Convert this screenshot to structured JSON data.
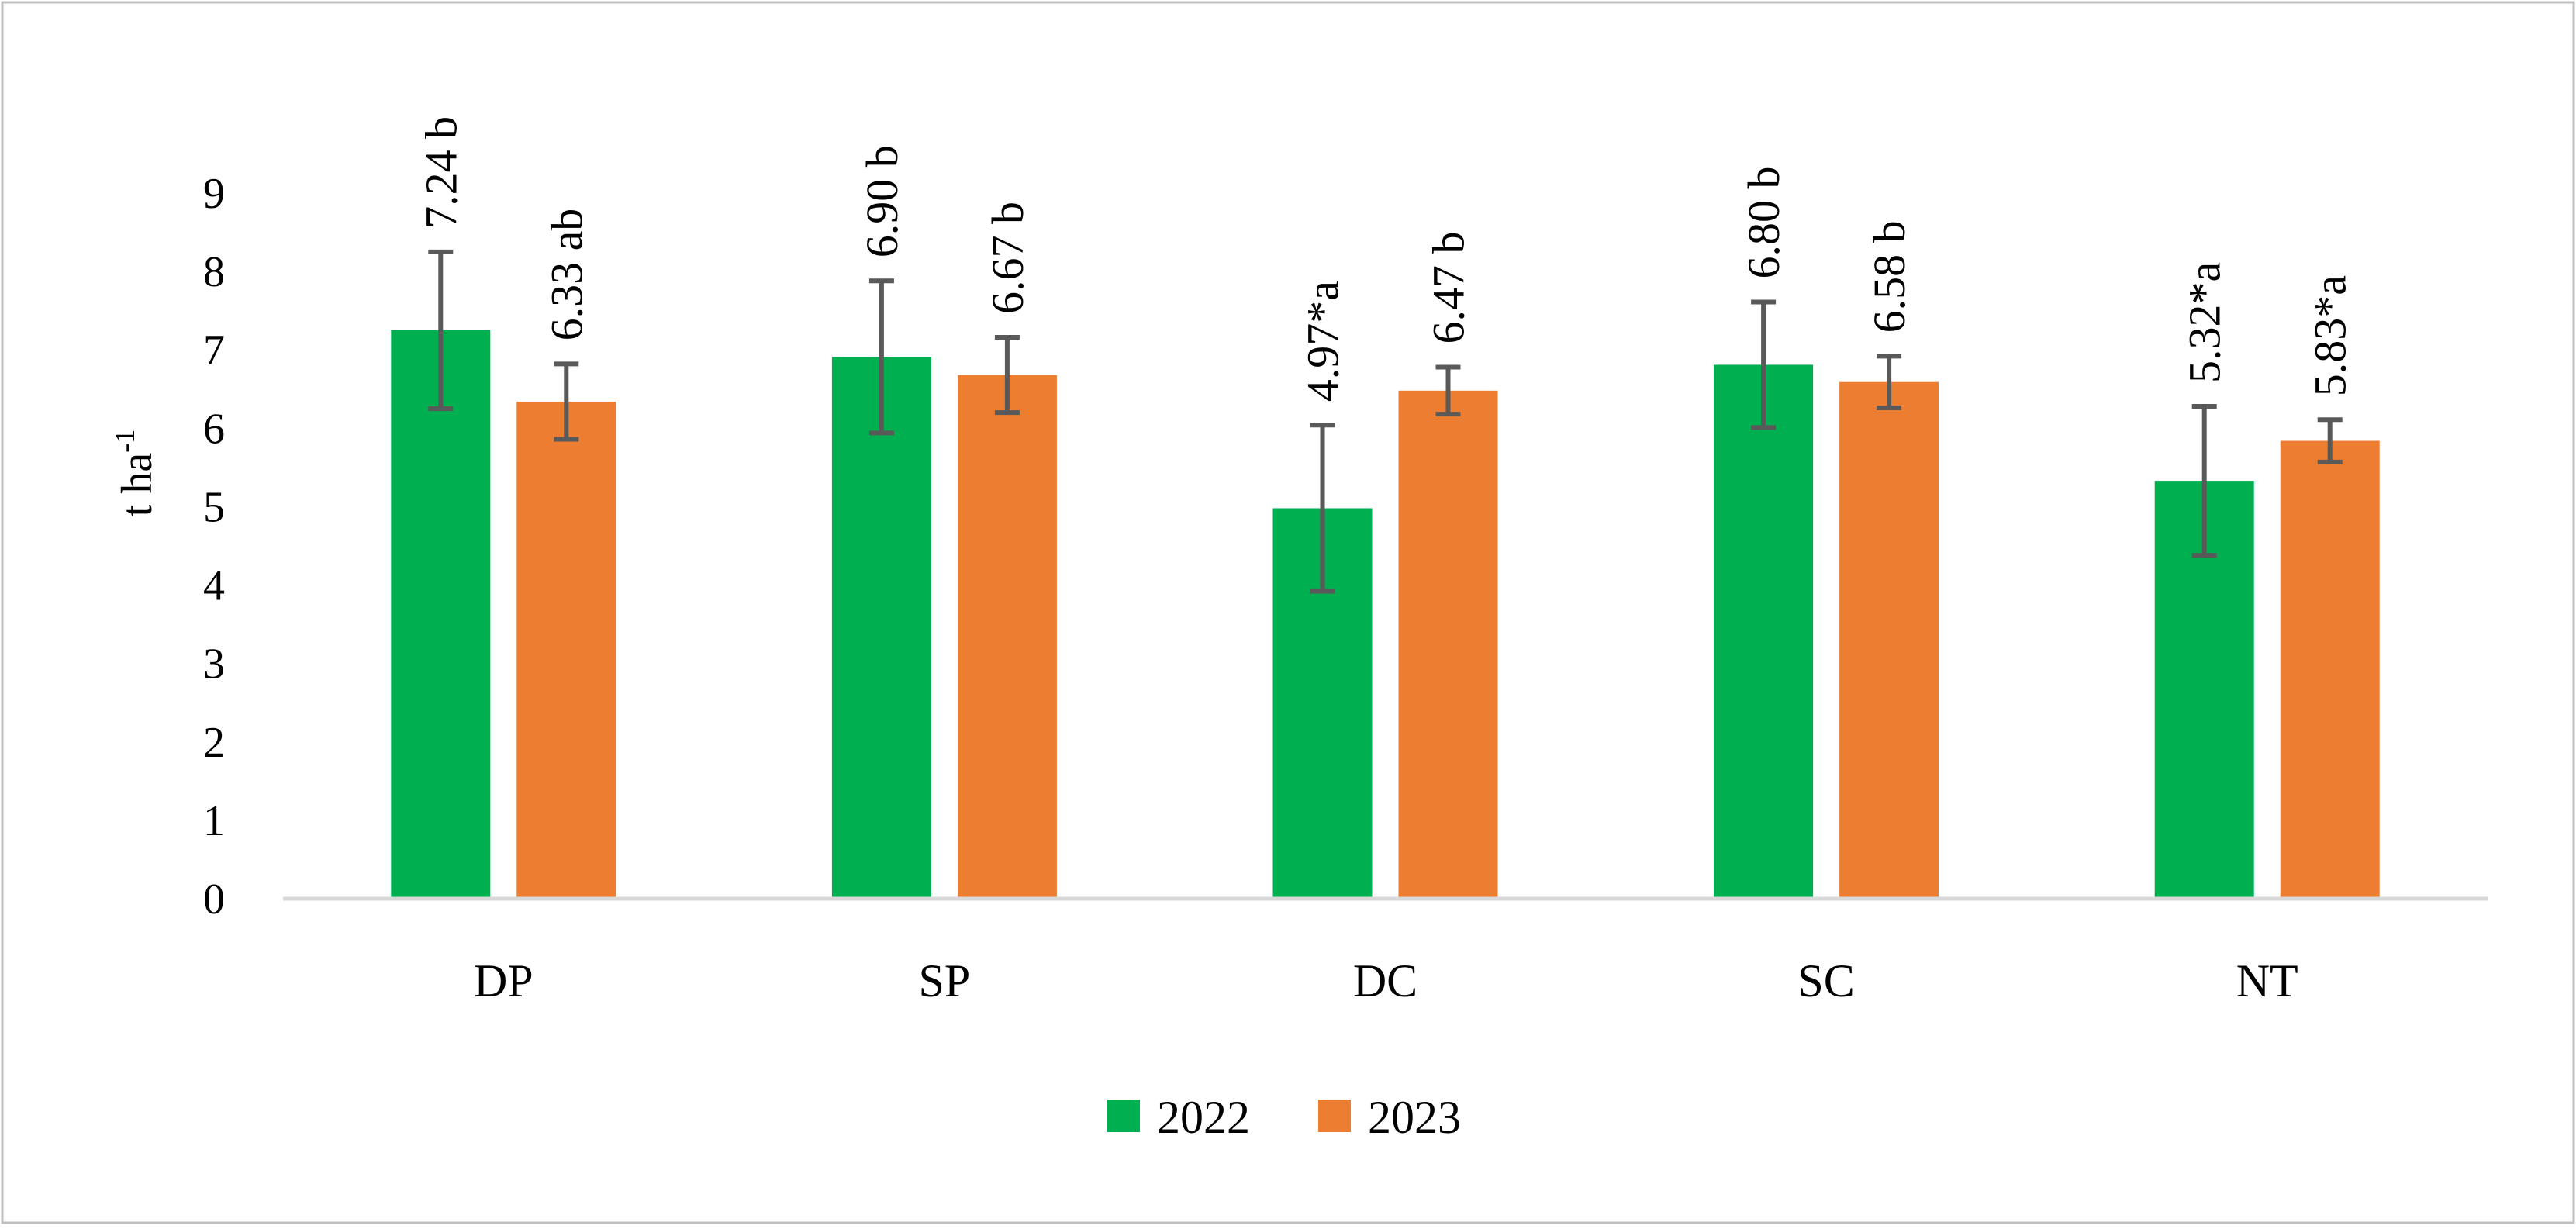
{
  "chart_data": {
    "type": "bar",
    "title": "",
    "xlabel": "",
    "ylabel": "t ha",
    "ylabel_superscript": "-1",
    "ylim": [
      0,
      9
    ],
    "yticks": [
      "0",
      "1",
      "2",
      "3",
      "4",
      "5",
      "6",
      "7",
      "8",
      "9"
    ],
    "categories": [
      "DP",
      "SP",
      "DC",
      "SC",
      "NT"
    ],
    "series": [
      {
        "name": "2022",
        "color": "#00B050",
        "values": [
          7.24,
          6.9,
          4.97,
          6.8,
          5.32
        ],
        "error": [
          1.0,
          0.97,
          1.06,
          0.8,
          0.95
        ],
        "labels": [
          "7.24 b",
          "6.90 b",
          "4.97*a",
          "6.80 b",
          "5.32*a"
        ]
      },
      {
        "name": "2023",
        "color": "#ED7D31",
        "values": [
          6.33,
          6.67,
          6.47,
          6.58,
          5.83
        ],
        "error": [
          0.48,
          0.48,
          0.3,
          0.33,
          0.27
        ],
        "labels": [
          "6.33 ab",
          "6.67 b",
          "6.47 b",
          "6.58 b",
          "5.83*a"
        ]
      }
    ],
    "legend": {
      "position": "bottom",
      "entries": [
        "2022",
        "2023"
      ]
    },
    "grid": false
  },
  "colors": {
    "axis": "#D9D9D9",
    "error_bar": "#595959",
    "frame": "#BFBFBF"
  }
}
